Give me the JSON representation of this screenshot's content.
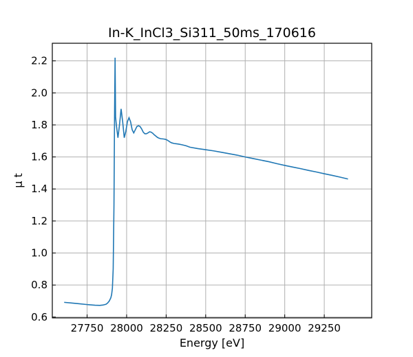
{
  "chart_data": {
    "type": "line",
    "title": "In-K_InCl3_Si311_50ms_170616",
    "xlabel": "Energy [eV]",
    "ylabel": "μ t",
    "xlim": [
      27530,
      29550
    ],
    "ylim": [
      0.595,
      2.31
    ],
    "xticks": [
      27750,
      28000,
      28250,
      28500,
      28750,
      29000,
      29250
    ],
    "yticks": [
      0.6,
      0.8,
      1.0,
      1.2,
      1.4,
      1.6,
      1.8,
      2.0,
      2.2
    ],
    "xtick_labels": [
      "27750",
      "28000",
      "28250",
      "28500",
      "28750",
      "29000",
      "29250"
    ],
    "ytick_labels": [
      "0.6",
      "0.8",
      "1.0",
      "1.2",
      "1.4",
      "1.6",
      "1.8",
      "2.0",
      "2.2"
    ],
    "grid": true,
    "color": "#1f77b4",
    "series": [
      {
        "x": [
          27605,
          27650,
          27700,
          27750,
          27800,
          27830,
          27850,
          27870,
          27880,
          27890,
          27900,
          27905,
          27910,
          27915,
          27920,
          27924,
          27927,
          27930,
          27935,
          27945,
          27955,
          27965,
          27975,
          27985,
          27995,
          28005,
          28015,
          28025,
          28035,
          28045,
          28055,
          28065,
          28075,
          28085,
          28095,
          28105,
          28115,
          28125,
          28135,
          28145,
          28155,
          28165,
          28175,
          28185,
          28195,
          28205,
          28215,
          28225,
          28235,
          28245,
          28255,
          28265,
          28275,
          28285,
          28300,
          28315,
          28330,
          28350,
          28375,
          28400,
          28450,
          28500,
          28550,
          28600,
          28650,
          28700,
          28750,
          28800,
          28850,
          28900,
          28950,
          29000,
          29050,
          29100,
          29150,
          29200,
          29250,
          29300,
          29350,
          29400
        ],
        "y": [
          0.692,
          0.688,
          0.683,
          0.678,
          0.674,
          0.673,
          0.675,
          0.68,
          0.688,
          0.7,
          0.72,
          0.74,
          0.78,
          0.9,
          1.3,
          1.9,
          2.22,
          1.85,
          1.8,
          1.72,
          1.8,
          1.9,
          1.82,
          1.72,
          1.76,
          1.82,
          1.845,
          1.82,
          1.77,
          1.75,
          1.77,
          1.79,
          1.795,
          1.79,
          1.775,
          1.755,
          1.745,
          1.745,
          1.75,
          1.757,
          1.755,
          1.748,
          1.738,
          1.73,
          1.722,
          1.717,
          1.714,
          1.713,
          1.712,
          1.71,
          1.706,
          1.7,
          1.693,
          1.688,
          1.684,
          1.682,
          1.68,
          1.676,
          1.67,
          1.661,
          1.652,
          1.645,
          1.638,
          1.629,
          1.62,
          1.611,
          1.6,
          1.59,
          1.58,
          1.57,
          1.558,
          1.547,
          1.537,
          1.527,
          1.516,
          1.506,
          1.495,
          1.485,
          1.474,
          1.462
        ]
      }
    ]
  }
}
